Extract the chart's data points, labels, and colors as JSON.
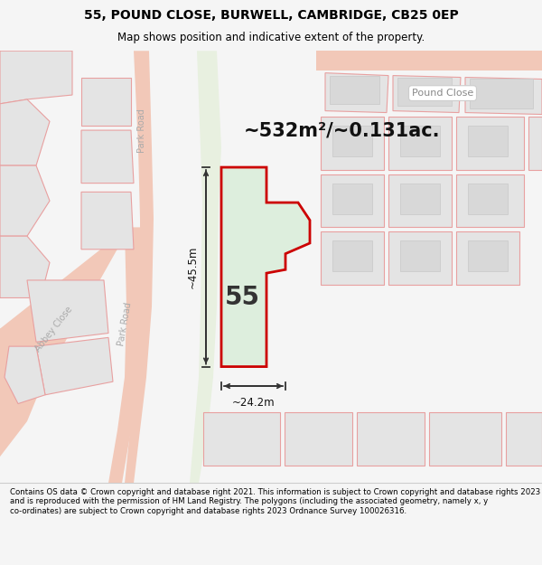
{
  "title_line1": "55, POUND CLOSE, BURWELL, CAMBRIDGE, CB25 0EP",
  "title_line2": "Map shows position and indicative extent of the property.",
  "area_text": "~532m²/~0.131ac.",
  "plot_number": "55",
  "dim_width": "~24.2m",
  "dim_height": "~45.5m",
  "road_label_park1": "Park Road",
  "road_label_park2": "Park Road",
  "road_label_abbey": "Abbey Close",
  "road_label_pound": "Pound Close",
  "footer_text": "Contains OS data © Crown copyright and database right 2021. This information is subject to Crown copyright and database rights 2023 and is reproduced with the permission of HM Land Registry. The polygons (including the associated geometry, namely x, y co-ordinates) are subject to Crown copyright and database rights 2023 Ordnance Survey 100026316.",
  "bg_color": "#f5f5f5",
  "map_bg": "#f7f6f4",
  "plot_fill": "#ddeedd",
  "plot_edge": "#cc0000",
  "neighbor_fill": "#e4e4e4",
  "neighbor_edge": "#e8a0a0",
  "road_color": "#f2c8b8",
  "parcel_edge_light": "#f0b0a0",
  "green_strip": "#e8f0e0",
  "title_bg": "#ffffff",
  "footer_bg": "#ffffff",
  "arrow_color": "#333333",
  "text_color": "#333333",
  "road_text_color": "#aaaaaa"
}
